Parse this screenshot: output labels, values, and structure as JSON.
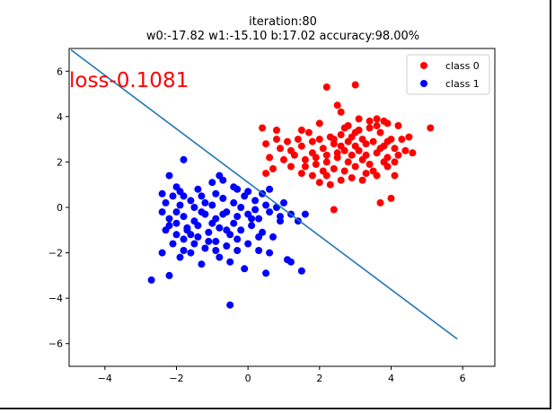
{
  "chart_data": {
    "type": "scatter",
    "title_lines": [
      "iteration:80",
      "w0:-17.82 w1:-15.10 b:17.02 accuracy:98.00%"
    ],
    "xlabel": "",
    "ylabel": "",
    "xlim": [
      -5,
      6.9
    ],
    "ylim": [
      -7,
      7
    ],
    "x_ticks": [
      -4,
      -2,
      0,
      2,
      4,
      6
    ],
    "y_ticks": [
      -6,
      -4,
      -2,
      0,
      2,
      4,
      6
    ],
    "x_tick_labels": [
      "−4",
      "−2",
      "0",
      "2",
      "4",
      "6"
    ],
    "y_tick_labels": [
      "−6",
      "−4",
      "−2",
      "0",
      "2",
      "4",
      "6"
    ],
    "grid": false,
    "legend_position": "top-right",
    "annotation": {
      "text": "loss-0.1081",
      "x": -5,
      "y": 5.3,
      "color": "#ff0000"
    },
    "decision_line": {
      "x": [
        -4.95,
        5.85
      ],
      "y": [
        6.94,
        -5.8
      ],
      "color": "#1f77b4"
    },
    "series": [
      {
        "name": "class 0",
        "color": "#ff0000",
        "points": [
          [
            2.2,
            5.3
          ],
          [
            3.0,
            5.4
          ],
          [
            2.5,
            4.5
          ],
          [
            3.8,
            3.8
          ],
          [
            5.1,
            3.5
          ],
          [
            0.4,
            3.5
          ],
          [
            0.8,
            3.4
          ],
          [
            1.5,
            3.4
          ],
          [
            2.0,
            3.7
          ],
          [
            2.6,
            4.2
          ],
          [
            2.8,
            3.6
          ],
          [
            3.1,
            3.9
          ],
          [
            3.4,
            3.8
          ],
          [
            3.6,
            3.9
          ],
          [
            3.9,
            3.7
          ],
          [
            4.2,
            3.6
          ],
          [
            4.5,
            3.1
          ],
          [
            4.4,
            2.5
          ],
          [
            4.1,
            2.6
          ],
          [
            3.8,
            2.7
          ],
          [
            3.5,
            2.9
          ],
          [
            3.2,
            3.0
          ],
          [
            2.9,
            3.1
          ],
          [
            2.6,
            3.2
          ],
          [
            2.3,
            3.1
          ],
          [
            2.0,
            3.0
          ],
          [
            1.7,
            3.3
          ],
          [
            1.4,
            3.0
          ],
          [
            1.1,
            2.9
          ],
          [
            0.8,
            3.0
          ],
          [
            0.5,
            2.8
          ],
          [
            0.6,
            2.2
          ],
          [
            0.9,
            2.6
          ],
          [
            1.2,
            2.5
          ],
          [
            1.5,
            2.7
          ],
          [
            1.8,
            2.4
          ],
          [
            2.1,
            2.6
          ],
          [
            2.4,
            2.8
          ],
          [
            2.7,
            2.5
          ],
          [
            3.0,
            2.7
          ],
          [
            3.3,
            2.3
          ],
          [
            3.6,
            2.4
          ],
          [
            3.9,
            2.2
          ],
          [
            4.2,
            2.3
          ],
          [
            4.0,
            3.0
          ],
          [
            3.7,
            3.3
          ],
          [
            3.4,
            3.5
          ],
          [
            3.1,
            3.4
          ],
          [
            2.8,
            2.9
          ],
          [
            2.5,
            2.2
          ],
          [
            2.2,
            2.0
          ],
          [
            1.9,
            1.9
          ],
          [
            1.6,
            2.1
          ],
          [
            1.3,
            2.3
          ],
          [
            1.0,
            2.1
          ],
          [
            0.7,
            1.7
          ],
          [
            0.5,
            1.5
          ],
          [
            1.2,
            1.8
          ],
          [
            1.5,
            1.5
          ],
          [
            1.8,
            1.4
          ],
          [
            2.1,
            1.6
          ],
          [
            2.4,
            1.7
          ],
          [
            2.7,
            1.6
          ],
          [
            3.0,
            1.8
          ],
          [
            3.3,
            1.5
          ],
          [
            3.6,
            1.4
          ],
          [
            3.9,
            1.8
          ],
          [
            4.1,
            2.0
          ],
          [
            2.6,
            1.2
          ],
          [
            2.3,
            1.0
          ],
          [
            2.0,
            1.1
          ],
          [
            2.9,
            1.3
          ],
          [
            3.5,
            1.6
          ],
          [
            4.0,
            0.4
          ],
          [
            3.7,
            0.2
          ],
          [
            2.4,
            -0.1
          ],
          [
            3.2,
            2.1
          ],
          [
            2.9,
            2.3
          ],
          [
            2.5,
            2.4
          ],
          [
            3.8,
            2.0
          ],
          [
            4.3,
            3.0
          ],
          [
            3.0,
            3.3
          ],
          [
            2.7,
            3.5
          ],
          [
            3.3,
            2.8
          ],
          [
            2.2,
            2.3
          ],
          [
            1.8,
            2.9
          ],
          [
            4.6,
            2.4
          ],
          [
            3.6,
            3.6
          ],
          [
            2.4,
            3.0
          ],
          [
            1.9,
            2.2
          ],
          [
            3.1,
            2.5
          ],
          [
            2.8,
            2.0
          ],
          [
            3.4,
            1.9
          ],
          [
            3.7,
            2.6
          ],
          [
            4.1,
            1.4
          ],
          [
            2.2,
            1.4
          ],
          [
            1.6,
            1.8
          ],
          [
            3.9,
            2.9
          ],
          [
            2.6,
            2.7
          ],
          [
            3.2,
            1.2
          ]
        ]
      },
      {
        "name": "class 1",
        "color": "#0000ff",
        "points": [
          [
            -1.8,
            2.1
          ],
          [
            -2.2,
            1.4
          ],
          [
            -0.8,
            1.4
          ],
          [
            -0.7,
            1.2
          ],
          [
            -2.4,
            0.6
          ],
          [
            -1.8,
            0.5
          ],
          [
            -1.4,
            0.8
          ],
          [
            -1.0,
            1.1
          ],
          [
            -0.3,
            0.8
          ],
          [
            0.4,
            0.6
          ],
          [
            0.6,
            0.8
          ],
          [
            1.0,
            0.2
          ],
          [
            -2.3,
            0.2
          ],
          [
            -2.1,
            0.5
          ],
          [
            -1.9,
            0.7
          ],
          [
            -1.6,
            0.3
          ],
          [
            -1.3,
            0.5
          ],
          [
            -1.0,
            0.1
          ],
          [
            -0.7,
            0.4
          ],
          [
            -0.4,
            0.2
          ],
          [
            -0.1,
            0.5
          ],
          [
            0.2,
            0.3
          ],
          [
            0.5,
            0.1
          ],
          [
            0.8,
            0.0
          ],
          [
            1.2,
            -0.3
          ],
          [
            1.6,
            -0.3
          ],
          [
            1.4,
            -0.6
          ],
          [
            -2.4,
            -0.2
          ],
          [
            -2.2,
            -0.5
          ],
          [
            -2.0,
            -0.7
          ],
          [
            -1.8,
            -0.4
          ],
          [
            -1.5,
            -0.6
          ],
          [
            -1.2,
            -0.3
          ],
          [
            -0.9,
            -0.5
          ],
          [
            -0.6,
            -0.2
          ],
          [
            -0.3,
            -0.4
          ],
          [
            0.0,
            -0.3
          ],
          [
            0.3,
            -0.5
          ],
          [
            0.6,
            -0.2
          ],
          [
            0.9,
            -0.4
          ],
          [
            -2.3,
            -1.0
          ],
          [
            -2.0,
            -1.2
          ],
          [
            -1.7,
            -1.0
          ],
          [
            -1.4,
            -1.3
          ],
          [
            -1.1,
            -1.1
          ],
          [
            -0.8,
            -0.9
          ],
          [
            -0.5,
            -1.2
          ],
          [
            -0.2,
            -1.0
          ],
          [
            0.1,
            -0.8
          ],
          [
            0.4,
            -1.1
          ],
          [
            0.7,
            -1.3
          ],
          [
            -2.1,
            -1.6
          ],
          [
            -1.8,
            -1.9
          ],
          [
            -1.5,
            -1.6
          ],
          [
            -1.2,
            -1.8
          ],
          [
            -0.9,
            -1.5
          ],
          [
            -0.6,
            -1.7
          ],
          [
            -0.3,
            -1.4
          ],
          [
            0.0,
            -1.6
          ],
          [
            0.3,
            -1.9
          ],
          [
            0.6,
            -2.0
          ],
          [
            -2.4,
            -2.0
          ],
          [
            -1.9,
            -2.2
          ],
          [
            -1.6,
            -2.0
          ],
          [
            -1.3,
            -2.5
          ],
          [
            -0.8,
            -2.2
          ],
          [
            -0.5,
            -2.4
          ],
          [
            -0.1,
            -2.7
          ],
          [
            0.5,
            -2.9
          ],
          [
            1.1,
            -2.3
          ],
          [
            1.2,
            -2.4
          ],
          [
            1.5,
            -2.8
          ],
          [
            -2.2,
            -3.0
          ],
          [
            -2.7,
            -3.2
          ],
          [
            -0.5,
            -4.3
          ],
          [
            -1.7,
            -0.9
          ],
          [
            -1.3,
            -0.2
          ],
          [
            -0.9,
            0.6
          ],
          [
            -0.4,
            -0.7
          ],
          [
            0.2,
            -0.1
          ],
          [
            -1.9,
            0.1
          ],
          [
            -1.0,
            -0.7
          ],
          [
            -0.2,
            0.0
          ],
          [
            -1.5,
            0.0
          ],
          [
            0.0,
            0.7
          ],
          [
            -2.0,
            -0.2
          ],
          [
            -1.1,
            -1.5
          ],
          [
            -0.6,
            -1.0
          ],
          [
            -1.6,
            -1.2
          ],
          [
            -0.3,
            -1.9
          ],
          [
            -2.2,
            -0.8
          ],
          [
            -1.2,
            0.2
          ],
          [
            0.3,
            -1.3
          ],
          [
            -0.7,
            -0.3
          ],
          [
            -1.8,
            -1.4
          ],
          [
            -0.4,
            0.9
          ],
          [
            0.9,
            -0.6
          ],
          [
            -1.4,
            -0.8
          ],
          [
            -2.0,
            0.9
          ],
          [
            -0.9,
            -1.9
          ],
          [
            0.1,
            -0.5
          ]
        ]
      }
    ]
  }
}
